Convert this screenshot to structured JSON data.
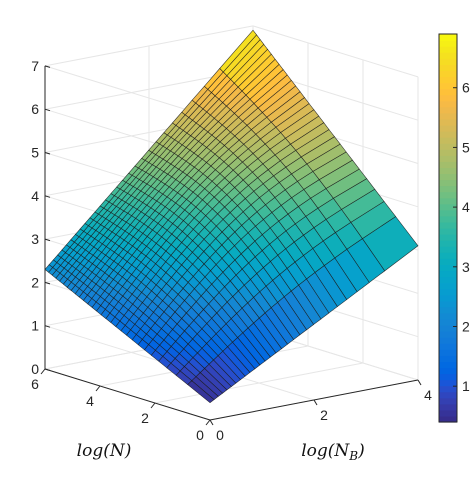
{
  "chart_data": {
    "type": "surface",
    "title": "",
    "xlabel": "log(N)",
    "ylabel": "log(N_B)",
    "zlabel": "",
    "x_range": [
      0,
      6
    ],
    "y_range": [
      0,
      4
    ],
    "z_range": [
      0,
      7
    ],
    "x_ticks": [
      "0",
      "2",
      "4",
      "6"
    ],
    "y_ticks": [
      "0",
      "2",
      "4"
    ],
    "z_ticks": [
      "0",
      "1",
      "2",
      "3",
      "4",
      "5",
      "6",
      "7"
    ],
    "colormap": "parula",
    "colorbar": {
      "range": [
        0.4,
        6.9
      ],
      "ticks": [
        "1",
        "2",
        "3",
        "4",
        "5",
        "6"
      ]
    },
    "grid": true,
    "corner_values": [
      {
        "x": 0,
        "y": 0,
        "z": 0.4
      },
      {
        "x": 6,
        "y": 0,
        "z": 2.3
      },
      {
        "x": 0,
        "y": 4,
        "z": 3.1
      },
      {
        "x": 6,
        "y": 4,
        "z": 6.9
      }
    ]
  }
}
